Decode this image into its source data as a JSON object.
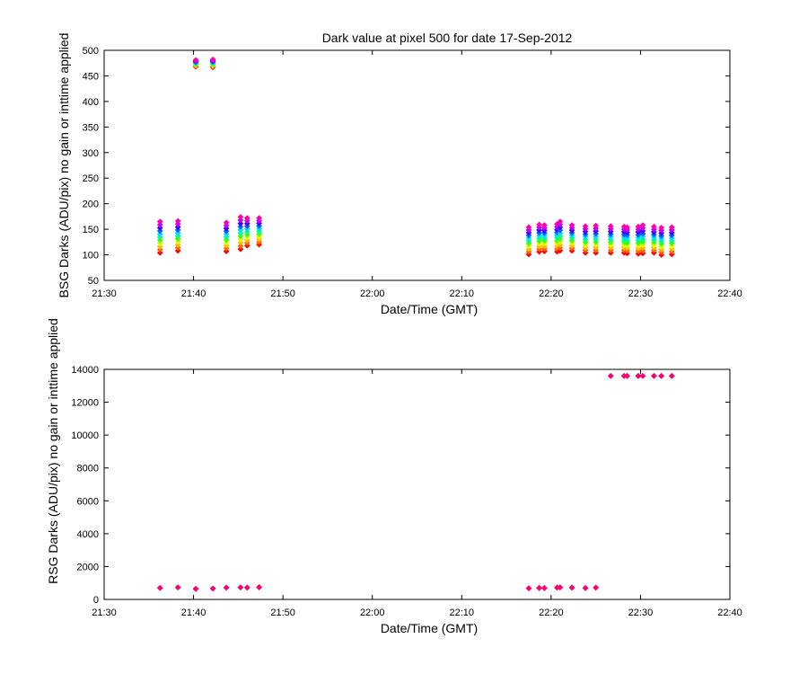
{
  "chart_data": [
    {
      "type": "scatter",
      "title": "Dark value at pixel 500 for date 17-Sep-2012",
      "xlabel": "Date/Time (GMT)",
      "ylabel": "BSG Darks (ADU/pix) no gain or inttime applied",
      "xlim": [
        "21:30",
        "22:40"
      ],
      "ylim": [
        50,
        500
      ],
      "x_ticks": [
        "21:30",
        "21:40",
        "21:50",
        "22:00",
        "22:10",
        "22:20",
        "22:30",
        "22:40"
      ],
      "y_ticks": [
        50,
        100,
        150,
        200,
        250,
        300,
        350,
        400,
        450,
        500
      ],
      "grid": false,
      "series_colors": [
        "#ff0000",
        "#ff6600",
        "#ffbb00",
        "#ddff00",
        "#44ff00",
        "#00ff88",
        "#00ddff",
        "#0066ff",
        "#4400ff",
        "#bb00ff",
        "#ff00aa"
      ],
      "x": [
        "21:36:15",
        "21:38:15",
        "21:40:15",
        "21:42:10",
        "21:43:40",
        "21:45:15",
        "21:46:00",
        "21:47:20",
        "22:17:30",
        "22:18:40",
        "22:19:15",
        "22:20:40",
        "22:21:00",
        "22:22:20",
        "22:23:50",
        "22:25:00",
        "22:26:40",
        "22:28:10",
        "22:28:30",
        "22:29:45",
        "22:30:15",
        "22:31:30",
        "22:32:20",
        "22:33:30"
      ],
      "y_low": [
        104,
        108,
        468,
        467,
        107,
        111,
        118,
        120,
        101,
        106,
        107,
        106,
        108,
        108,
        104,
        104,
        104,
        104,
        103,
        102,
        103,
        104,
        100,
        101
      ],
      "y_high": [
        165,
        166,
        481,
        482,
        163,
        174,
        172,
        172,
        154,
        159,
        158,
        160,
        165,
        158,
        156,
        157,
        156,
        155,
        154,
        155,
        158,
        155,
        153,
        154
      ]
    },
    {
      "type": "scatter",
      "title": "",
      "xlabel": "Date/Time (GMT)",
      "ylabel": "RSG Darks (ADU/pix) no gain or inttime applied",
      "xlim": [
        "21:30",
        "22:40"
      ],
      "ylim": [
        0,
        14000
      ],
      "x_ticks": [
        "21:30",
        "21:40",
        "21:50",
        "22:00",
        "22:10",
        "22:20",
        "22:30",
        "22:40"
      ],
      "y_ticks": [
        0,
        2000,
        4000,
        6000,
        8000,
        10000,
        12000,
        14000
      ],
      "grid": false,
      "series_colors": [
        "#4400ff",
        "#ff0066"
      ],
      "x": [
        "21:36:15",
        "21:38:15",
        "21:40:15",
        "21:42:10",
        "21:43:40",
        "21:45:15",
        "21:46:00",
        "21:47:20",
        "22:17:30",
        "22:18:40",
        "22:19:15",
        "22:20:40",
        "22:21:00",
        "22:22:20",
        "22:23:50",
        "22:25:00",
        "22:26:40",
        "22:28:10",
        "22:28:30",
        "22:29:45",
        "22:30:15",
        "22:31:30",
        "22:32:20",
        "22:33:30"
      ],
      "values": [
        700,
        730,
        640,
        660,
        720,
        730,
        720,
        740,
        680,
        700,
        690,
        720,
        730,
        720,
        690,
        720,
        13600,
        13600,
        13600,
        13600,
        13600,
        13600,
        13600,
        13600
      ]
    }
  ]
}
